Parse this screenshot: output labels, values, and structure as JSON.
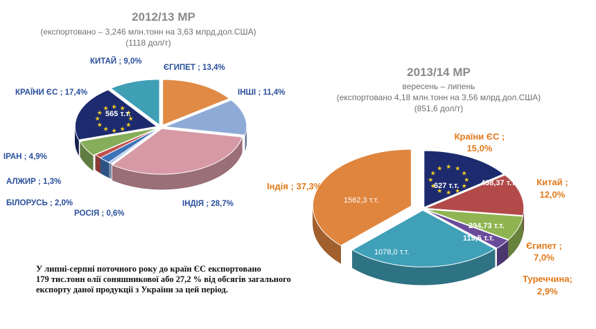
{
  "colors": {
    "eu": "#1d2b6e",
    "egypt": "#e08a45",
    "others": "#8eaad6",
    "india_left": "#d79aa5",
    "russia": "#a9c2e6",
    "belarus": "#3f73b8",
    "algeria": "#c0504d",
    "iran": "#86ad5a",
    "china_left": "#3f9fb5",
    "india_right": "#e0853e",
    "china_right": "#b24a4a",
    "egypt_right": "#8fb451",
    "turkey": "#6a4b9a",
    "other_right": "#3fa0b8",
    "label_blue": "#2a4f9c",
    "label_orange": "#e07a1b"
  },
  "chart_data": [
    {
      "type": "pie",
      "title": "2012/13 МР",
      "subtitle": "(експортовано – 3,246 млн.тонн на 3,63 млрд.дол.США)",
      "subtitle2": "(1118 дол/т)",
      "slices": [
        {
          "key": "egypt",
          "label": "ЄГИПЕТ ; 13,4%",
          "value": 13.4,
          "color_key": "egypt"
        },
        {
          "key": "others",
          "label": "ІНШІ ; 11,4%",
          "value": 11.4,
          "color_key": "others"
        },
        {
          "key": "india",
          "label": "ІНДІЯ ; 28,7%",
          "value": 28.7,
          "color_key": "india_left"
        },
        {
          "key": "russia",
          "label": "РОСІЯ ; 0,6%",
          "value": 0.6,
          "color_key": "russia"
        },
        {
          "key": "belarus",
          "label": "БІЛОРУСЬ ; 2,0%",
          "value": 2.0,
          "color_key": "belarus"
        },
        {
          "key": "algeria",
          "label": "АЛЖИР ; 1,3%",
          "value": 1.3,
          "color_key": "algeria"
        },
        {
          "key": "iran",
          "label": "ІРАН ; 4,9%",
          "value": 4.9,
          "color_key": "iran"
        },
        {
          "key": "eu",
          "label": "КРАЇНИ ЄС ; 17,4%",
          "value": 17.4,
          "color_key": "eu",
          "inner_label": "565 т.т."
        },
        {
          "key": "china",
          "label": "КИТАЙ ; 9,0%",
          "value": 9.0,
          "color_key": "china_left"
        }
      ]
    },
    {
      "type": "pie",
      "title": "2013/14 МР",
      "subtitle": "вересень – липень",
      "subtitle2": "(експортовано 4,18 млн.тонн на 3,56 млрд.дол.США)",
      "subtitle3": "(851,6 дол/т)",
      "slices": [
        {
          "key": "eu",
          "label_line1": "Країни ЄС ;",
          "label_line2": "15,0%",
          "value": 15.0,
          "color_key": "eu",
          "inner_label": "627 т.т."
        },
        {
          "key": "china",
          "label_line1": "Китай ;",
          "label_line2": "12,0%",
          "value": 12.0,
          "color_key": "china_right",
          "inner_label": "498,37 т.т."
        },
        {
          "key": "egypt",
          "label_line1": "Єгипет ;",
          "label_line2": "7,0%",
          "value": 7.0,
          "color_key": "egypt_right",
          "inner_label": "294,73 т.т."
        },
        {
          "key": "turkey",
          "label_line1": "Туреччина;",
          "label_line2": "2,9%",
          "value": 2.9,
          "color_key": "turkey",
          "inner_label": "119,5 т.т."
        },
        {
          "key": "other",
          "label_line1": "",
          "label_line2": "",
          "value": 25.8,
          "color_key": "other_right",
          "inner_label": "1078,0  т.т."
        },
        {
          "key": "india",
          "label_line1": "Індія ; 37,3%",
          "label_line2": "",
          "value": 37.3,
          "color_key": "india_right",
          "inner_label": "1562,3   т.т."
        }
      ]
    }
  ],
  "note": {
    "line1": "У липні-серпні поточного року до країн ЄС експортовано",
    "line2": "179 тис.тонн олії соняшникової або 27,2 % від обсягів загального",
    "line3": "експорту даної продукції з України за цей період."
  }
}
